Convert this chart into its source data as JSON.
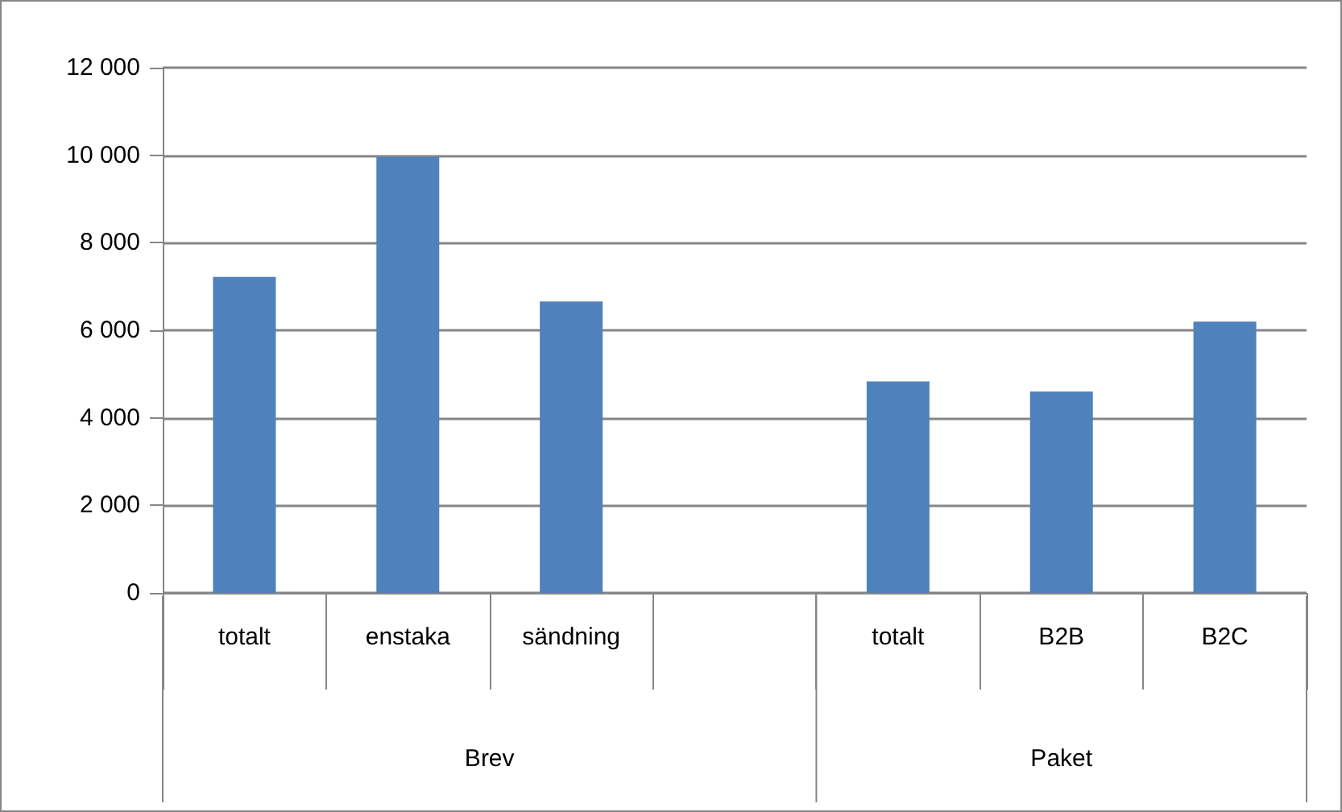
{
  "chart_data": {
    "type": "bar",
    "categories": [
      "totalt",
      "enstaka",
      "sändning",
      null,
      "totalt",
      "B2B",
      "B2C"
    ],
    "values": [
      7220,
      9960,
      6660,
      null,
      4830,
      4600,
      6200
    ],
    "color": "#4f81bd",
    "ylim": [
      0,
      12000
    ],
    "yticks": [
      {
        "value": 0,
        "label": "0"
      },
      {
        "value": 2000,
        "label": "2 000"
      },
      {
        "value": 4000,
        "label": "4 000"
      },
      {
        "value": 6000,
        "label": "6 000"
      },
      {
        "value": 8000,
        "label": "8 000"
      },
      {
        "value": 10000,
        "label": "10 000"
      },
      {
        "value": 12000,
        "label": "12 000"
      }
    ],
    "grid": "y",
    "annotations": [
      "Brev",
      "Paket"
    ]
  }
}
